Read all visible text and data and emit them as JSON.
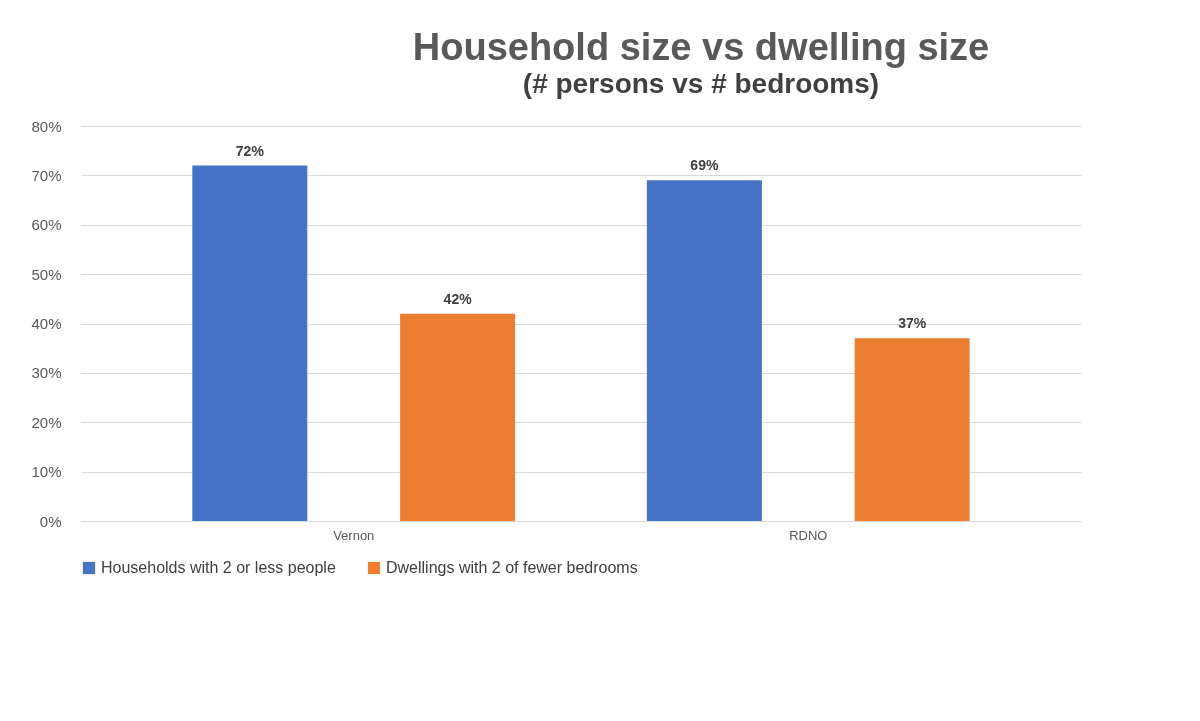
{
  "chart_data": {
    "type": "bar",
    "title": "Household size vs dwelling size",
    "subtitle": "(# persons vs # bedrooms)",
    "categories": [
      "Vernon",
      "RDNO"
    ],
    "series": [
      {
        "name": "Households with 2 or less people",
        "color": "#4472c4",
        "values": [
          72,
          69
        ],
        "value_labels": [
          "72%",
          "69%"
        ]
      },
      {
        "name": "Dwellings with 2 of fewer bedrooms",
        "color": "#ed7d31",
        "values": [
          42,
          37
        ],
        "value_labels": [
          "42%",
          "37%"
        ]
      }
    ],
    "ylim": [
      0,
      80
    ],
    "yticks": [
      {
        "value": 0,
        "label": "0%"
      },
      {
        "value": 10,
        "label": "10%"
      },
      {
        "value": 20,
        "label": "20%"
      },
      {
        "value": 30,
        "label": "30%"
      },
      {
        "value": 40,
        "label": "40%"
      },
      {
        "value": 50,
        "label": "50%"
      },
      {
        "value": 60,
        "label": "60%"
      },
      {
        "value": 70,
        "label": "70%"
      },
      {
        "value": 80,
        "label": "80%"
      }
    ],
    "grid": "y",
    "legend": "bottom"
  }
}
